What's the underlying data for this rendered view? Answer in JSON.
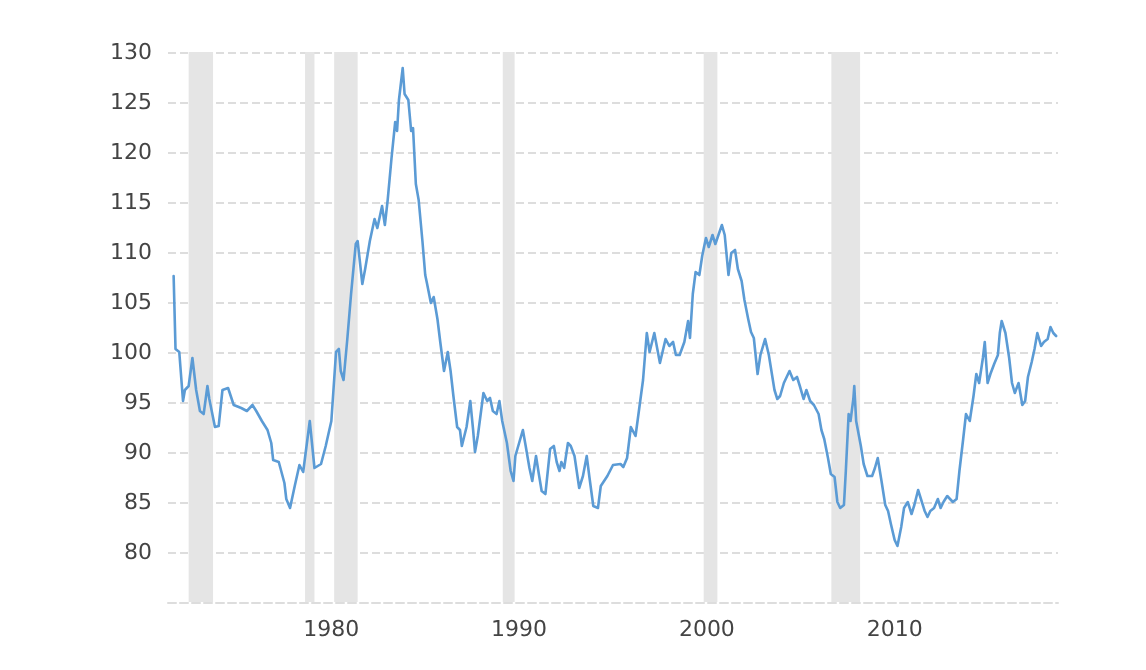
{
  "chart_data": {
    "type": "line",
    "x": [
      1971.6,
      1971.7,
      1971.9,
      1972.1,
      1972.2,
      1972.4,
      1972.6,
      1972.8,
      1973.0,
      1973.2,
      1973.4,
      1973.5,
      1973.8,
      1974.0,
      1974.2,
      1974.5,
      1974.8,
      1975.2,
      1975.5,
      1975.8,
      1976.0,
      1976.3,
      1976.6,
      1976.8,
      1976.9,
      1977.2,
      1977.5,
      1977.6,
      1977.8,
      1978.05,
      1978.3,
      1978.5,
      1978.85,
      1979.1,
      1979.45,
      1979.7,
      1980.0,
      1980.25,
      1980.4,
      1980.5,
      1980.65,
      1980.85,
      1981.05,
      1981.3,
      1981.4,
      1981.65,
      1981.8,
      1982.05,
      1982.3,
      1982.45,
      1982.7,
      1982.85,
      1983.0,
      1983.2,
      1983.4,
      1983.5,
      1983.6,
      1983.8,
      1983.9,
      1984.1,
      1984.25,
      1984.35,
      1984.5,
      1984.65,
      1984.85,
      1985.0,
      1985.1,
      1985.3,
      1985.45,
      1985.65,
      1985.8,
      1986.0,
      1986.2,
      1986.35,
      1986.5,
      1986.7,
      1986.85,
      1986.95,
      1987.2,
      1987.4,
      1987.55,
      1987.65,
      1987.8,
      1988.1,
      1988.3,
      1988.45,
      1988.6,
      1988.8,
      1988.95,
      1989.1,
      1989.35,
      1989.55,
      1989.7,
      1989.8,
      1990.0,
      1990.2,
      1990.35,
      1990.55,
      1990.7,
      1990.9,
      1991.05,
      1991.2,
      1991.4,
      1991.65,
      1991.85,
      1992.0,
      1992.15,
      1992.25,
      1992.4,
      1992.6,
      1992.75,
      1992.95,
      1993.2,
      1993.4,
      1993.6,
      1993.75,
      1993.95,
      1994.2,
      1994.35,
      1994.7,
      1995.0,
      1995.4,
      1995.55,
      1995.75,
      1995.95,
      1996.2,
      1996.45,
      1996.6,
      1996.8,
      1996.95,
      1997.2,
      1997.5,
      1997.8,
      1998.0,
      1998.2,
      1998.35,
      1998.55,
      1998.8,
      1999.0,
      1999.1,
      1999.25,
      1999.4,
      1999.6,
      1999.75,
      1999.95,
      2000.1,
      2000.3,
      2000.45,
      2000.8,
      2000.95,
      2001.15,
      2001.3,
      2001.5,
      2001.65,
      2001.85,
      2002.0,
      2002.2,
      2002.35,
      2002.5,
      2002.7,
      2002.85,
      2003.1,
      2003.3,
      2003.6,
      2003.75,
      2003.9,
      2004.1,
      2004.4,
      2004.6,
      2004.8,
      2004.95,
      2005.15,
      2005.3,
      2005.5,
      2005.7,
      2005.95,
      2006.1,
      2006.25,
      2006.45,
      2006.6,
      2006.8,
      2006.95,
      2007.1,
      2007.3,
      2007.4,
      2007.55,
      2007.65,
      2007.8,
      2007.85,
      2007.95,
      2008.2,
      2008.35,
      2008.55,
      2008.8,
      2008.95,
      2009.1,
      2009.3,
      2009.5,
      2009.65,
      2009.8,
      2010.0,
      2010.15,
      2010.35,
      2010.5,
      2010.7,
      2010.9,
      2011.05,
      2011.25,
      2011.4,
      2011.6,
      2011.75,
      2011.9,
      2012.1,
      2012.3,
      2012.45,
      2012.6,
      2012.8,
      2012.95,
      2013.1,
      2013.3,
      2013.45,
      2013.65,
      2013.8,
      2014.0,
      2014.2,
      2014.35,
      2014.5,
      2014.7,
      2014.8,
      2014.95,
      2015.1,
      2015.3,
      2015.5,
      2015.6,
      2015.7,
      2015.9,
      2016.1,
      2016.25,
      2016.4,
      2016.6,
      2016.8,
      2016.95,
      2017.1,
      2017.3,
      2017.45,
      2017.6,
      2017.8,
      2017.95,
      2018.15,
      2018.3,
      2018.45,
      2018.6
    ],
    "values": [
      107.6,
      100.3,
      100,
      95.1,
      96.2,
      96.6,
      99.4,
      96.2,
      94.1,
      93.8,
      96.6,
      95.3,
      92.5,
      92.6,
      96.2,
      96.4,
      94.7,
      94.4,
      94.1,
      94.7,
      94.1,
      93.1,
      92.2,
      90.9,
      89.2,
      89,
      86.9,
      85.3,
      84.4,
      86.6,
      88.7,
      88,
      93.1,
      88.4,
      88.8,
      90.6,
      93.1,
      100,
      100.3,
      98.1,
      97.2,
      101.3,
      105.8,
      110.8,
      111.1,
      106.8,
      108.3,
      111.1,
      113.3,
      112.4,
      114.6,
      112.7,
      115.2,
      119.3,
      123,
      122.1,
      125.2,
      128.4,
      125.8,
      125.2,
      122.1,
      122.4,
      116.8,
      115.2,
      111.1,
      107.7,
      106.8,
      104.9,
      105.5,
      103.3,
      101,
      98.1,
      100,
      98.1,
      95.6,
      92.5,
      92.2,
      90.6,
      92.5,
      95.1,
      92.2,
      90,
      91.6,
      95.9,
      95.1,
      95.4,
      94.1,
      93.8,
      95.1,
      93.1,
      90.9,
      88.1,
      87.1,
      89.6,
      90.9,
      92.2,
      90.6,
      88.4,
      87.1,
      89.6,
      87.8,
      86.1,
      85.8,
      90.3,
      90.6,
      89,
      88.1,
      89,
      88.4,
      90.9,
      90.6,
      89.6,
      86.4,
      87.6,
      89.6,
      87.4,
      84.6,
      84.4,
      86.6,
      87.6,
      88.7,
      88.8,
      88.5,
      89.4,
      92.5,
      91.6,
      95.1,
      97.2,
      101.9,
      100,
      101.9,
      98.9,
      101.3,
      100.6,
      101,
      99.7,
      99.7,
      101,
      103.1,
      101.4,
      105.8,
      108,
      107.7,
      109.6,
      111.4,
      110.5,
      111.7,
      110.8,
      112.7,
      111.7,
      107.7,
      109.9,
      110.2,
      108.3,
      107.1,
      105.2,
      103.3,
      102,
      101.4,
      97.8,
      99.7,
      101.3,
      99.7,
      96.2,
      95.3,
      95.6,
      96.9,
      98.1,
      97.2,
      97.5,
      96.6,
      95.3,
      96.2,
      95.1,
      94.7,
      93.8,
      92.2,
      91.3,
      89.4,
      87.8,
      87.5,
      85,
      84.4,
      84.7,
      88.1,
      93.8,
      93.1,
      95.3,
      96.6,
      93.1,
      90.6,
      88.8,
      87.6,
      87.6,
      88.4,
      89.4,
      87.1,
      84.7,
      84.1,
      82.8,
      81.2,
      80.6,
      82.5,
      84.4,
      85,
      83.8,
      84.7,
      86.2,
      85.3,
      84.1,
      83.5,
      84.1,
      84.4,
      85.3,
      84.4,
      85,
      85.6,
      85.3,
      85,
      85.3,
      88.1,
      91.3,
      93.8,
      93.1,
      95.6,
      97.8,
      96.9,
      99.4,
      101,
      96.9,
      97.8,
      98.8,
      99.7,
      101.9,
      103.1,
      101.9,
      99.4,
      96.9,
      95.9,
      96.9,
      94.7,
      95.1,
      97.5,
      99,
      100.3,
      101.9,
      100.6,
      101,
      101.3,
      102.5,
      101.9,
      101.6
    ],
    "color": "#5b9bd5",
    "xlim": [
      1971.3,
      2018.7
    ],
    "xticks": [
      1980,
      1990,
      2000,
      2010
    ],
    "ylim": [
      75,
      130
    ],
    "yticks": [
      80,
      85,
      90,
      95,
      100,
      105,
      110,
      115,
      120,
      125,
      130
    ],
    "grid": "y",
    "marker": "none",
    "line_style": "solid",
    "bands": [
      {
        "axis": "x",
        "from": 1972.4,
        "to": 1973.7,
        "color": "#e5e5e5"
      },
      {
        "axis": "x",
        "from": 1978.6,
        "to": 1979.1,
        "color": "#e5e5e5"
      },
      {
        "axis": "x",
        "from": 1980.15,
        "to": 1981.4,
        "color": "#e5e5e5"
      },
      {
        "axis": "x",
        "from": 1989.13,
        "to": 1989.76,
        "color": "#e5e5e5"
      },
      {
        "axis": "x",
        "from": 1999.83,
        "to": 2000.56,
        "color": "#e5e5e5"
      },
      {
        "axis": "x",
        "from": 2006.63,
        "to": 2008.16,
        "color": "#e5e5e5"
      }
    ]
  }
}
